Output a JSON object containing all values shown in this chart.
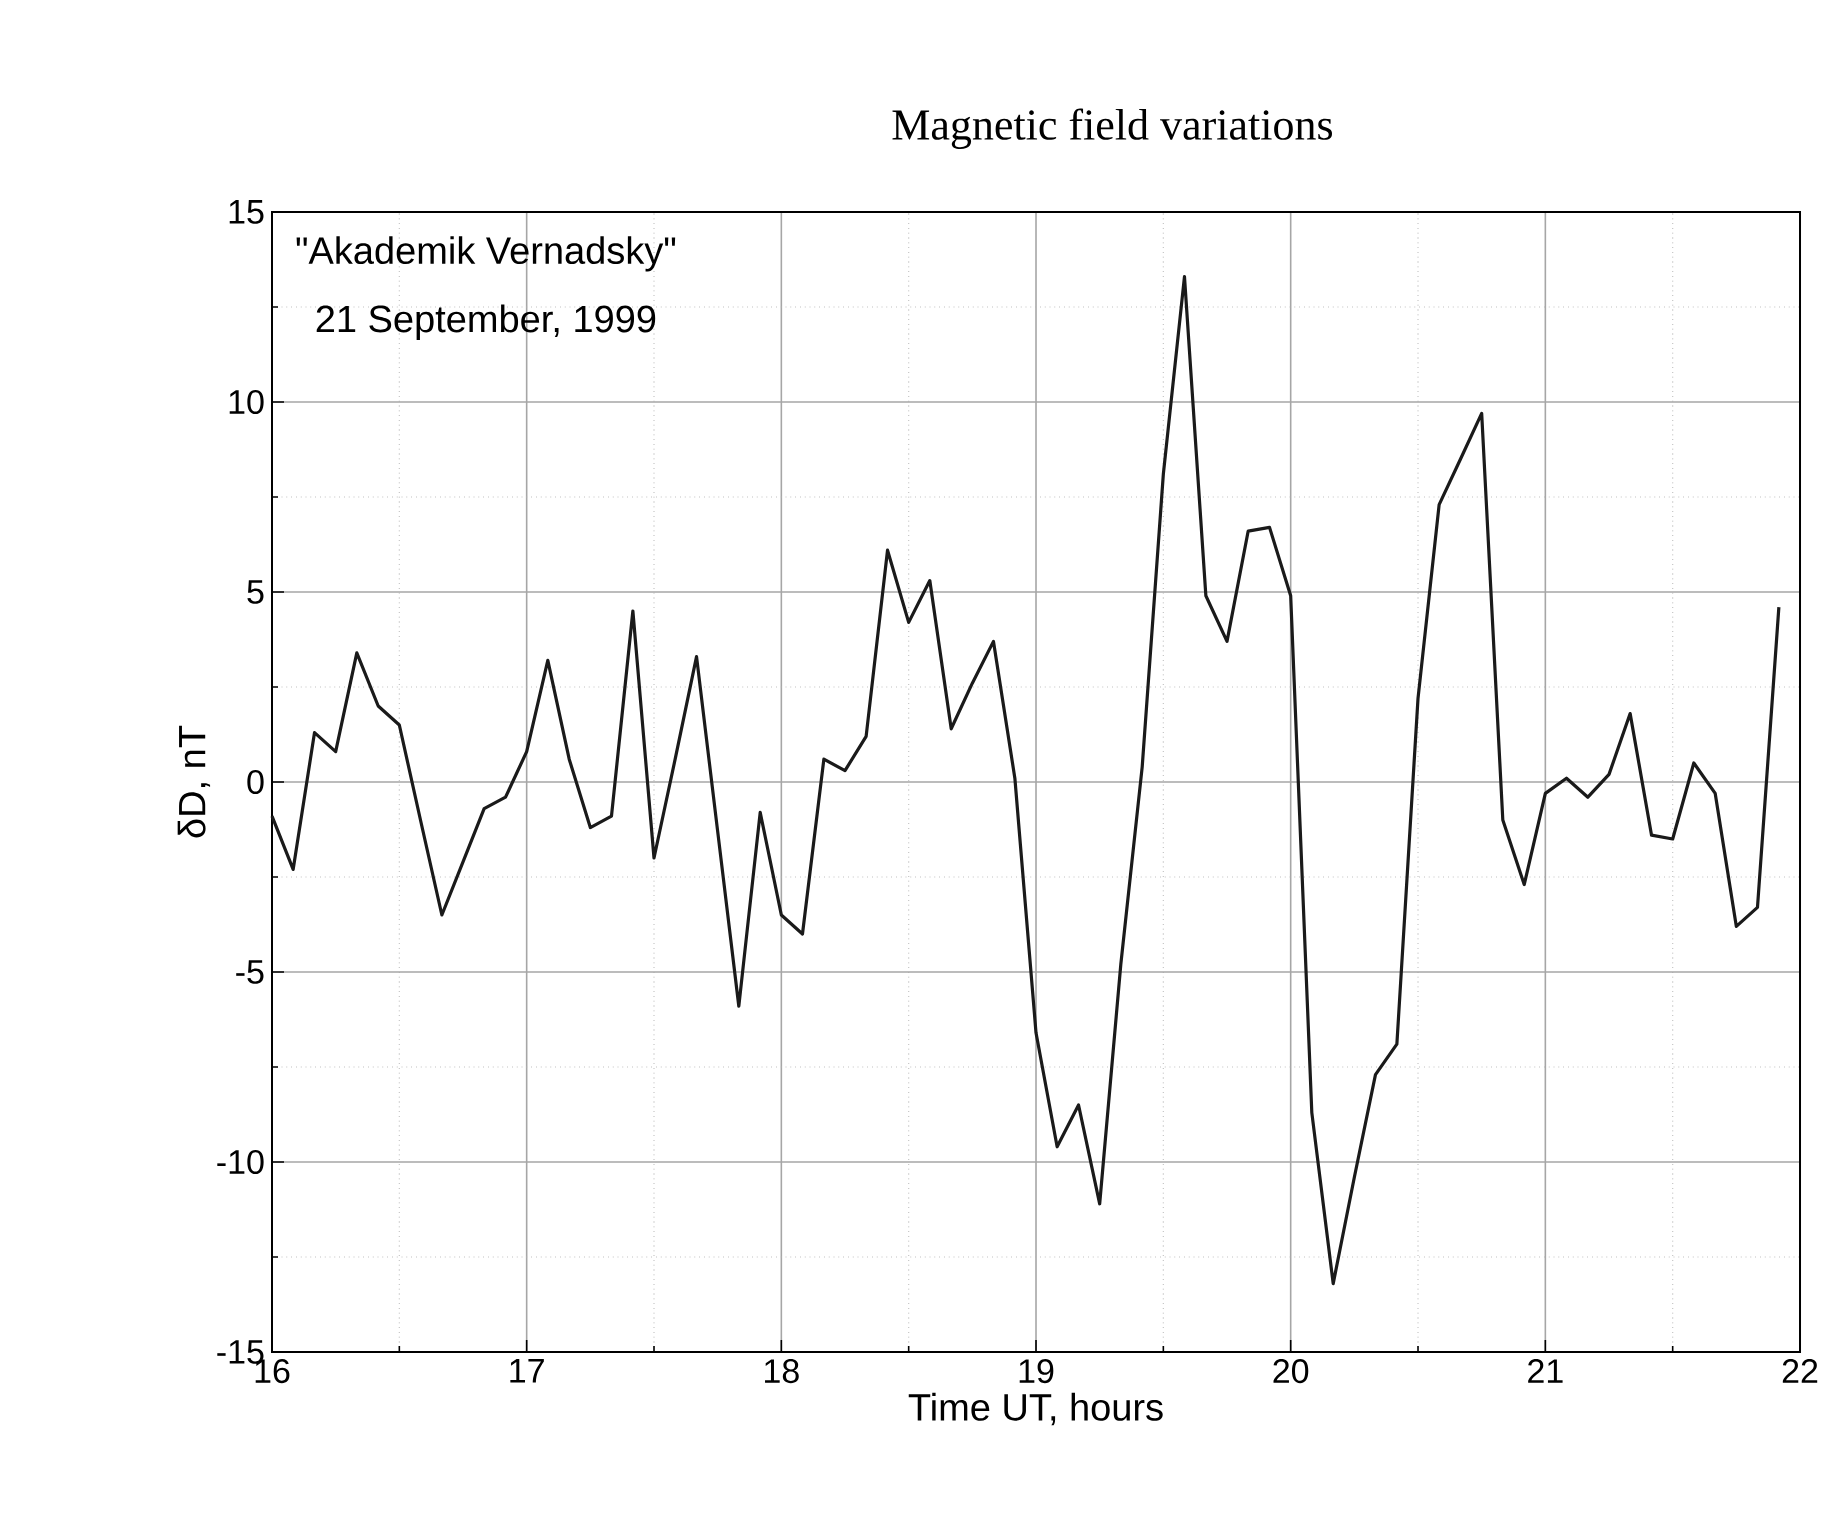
{
  "chart_data": {
    "type": "line",
    "title": "Magnetic field variations",
    "xlabel": "Time UT, hours",
    "ylabel": "δD, nT",
    "annotations": [
      "\"Akademik Vernadsky\"",
      "21 September, 1999"
    ],
    "x": [
      16.0,
      16.083,
      16.167,
      16.25,
      16.333,
      16.417,
      16.5,
      16.583,
      16.667,
      16.75,
      16.833,
      16.917,
      17.0,
      17.083,
      17.167,
      17.25,
      17.333,
      17.417,
      17.5,
      17.583,
      17.667,
      17.75,
      17.833,
      17.917,
      18.0,
      18.083,
      18.167,
      18.25,
      18.333,
      18.417,
      18.5,
      18.583,
      18.667,
      18.75,
      18.833,
      18.917,
      19.0,
      19.083,
      19.167,
      19.25,
      19.333,
      19.417,
      19.5,
      19.583,
      19.667,
      19.75,
      19.833,
      19.917,
      20.0,
      20.083,
      20.167,
      20.25,
      20.333,
      20.417,
      20.5,
      20.583,
      20.667,
      20.75,
      20.833,
      20.917,
      21.0,
      21.083,
      21.167,
      21.25,
      21.333,
      21.417,
      21.5,
      21.583,
      21.667,
      21.75,
      21.833,
      21.917
    ],
    "series": [
      {
        "color": "#1a1a1a",
        "values": [
          -0.9,
          -2.3,
          1.3,
          0.8,
          3.4,
          2.0,
          1.5,
          -1.0,
          -3.5,
          -2.1,
          -0.7,
          -0.4,
          0.8,
          3.2,
          0.6,
          -1.2,
          -0.9,
          4.5,
          -2.0,
          0.6,
          3.3,
          -1.3,
          -5.9,
          -0.8,
          -3.5,
          -4.0,
          0.6,
          0.3,
          1.2,
          6.1,
          4.2,
          5.3,
          1.4,
          2.6,
          3.7,
          0.1,
          -6.6,
          -9.6,
          -8.5,
          -11.1,
          -4.8,
          0.4,
          8.1,
          13.3,
          4.9,
          3.7,
          6.6,
          6.7,
          4.9,
          -8.7,
          -13.2,
          -10.4,
          -7.7,
          -6.9,
          2.2,
          7.3,
          8.5,
          9.7,
          -1.0,
          -2.7,
          -0.3,
          0.1,
          -0.4,
          0.2,
          1.8,
          -1.4,
          -1.5,
          0.5,
          -0.3,
          -3.8,
          -3.3,
          4.6
        ]
      }
    ],
    "xlim": [
      16,
      22
    ],
    "ylim": [
      -15,
      15
    ],
    "xticks": [
      16,
      17,
      18,
      19,
      20,
      21,
      22
    ],
    "yticks": [
      -15,
      -10,
      -5,
      0,
      5,
      10,
      15
    ],
    "grid": true,
    "marker": "none",
    "line_style": "solid"
  }
}
